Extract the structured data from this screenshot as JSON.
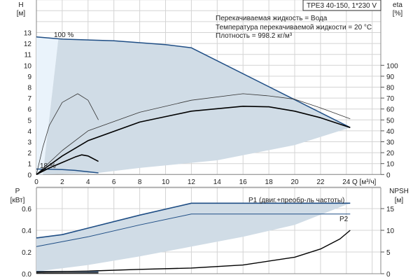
{
  "title_box": "TPE3 40-150, 1*230 V",
  "info": [
    "Перекачиваемая жидкость = Вода",
    "Температура перекачиваемой жидкости = 20 °C",
    "Плотность = 998.2 кг/м³"
  ],
  "colors": {
    "envelope": "#d0dce6",
    "envelope_light": "#eaf3fb",
    "max_curve": "#1f4e85",
    "curve": "#000000",
    "grid": "#d4d4d4"
  },
  "chart_data": [
    {
      "type": "line",
      "xlabel": "Q [м³/ч]",
      "ylabel": "H",
      "yunit": "[м]",
      "y2label": "eta",
      "y2unit": "[%]",
      "xlim": [
        0,
        26.6
      ],
      "ylim": [
        0,
        16
      ],
      "y2lim": [
        0,
        160
      ],
      "xticks": [
        "0",
        "2",
        "4",
        "6",
        "8",
        "10",
        "12",
        "14",
        "16",
        "18",
        "20",
        "22",
        "24"
      ],
      "yticks": [
        "0",
        "1",
        "2",
        "3",
        "4",
        "5",
        "6",
        "7",
        "8",
        "9",
        "10",
        "11",
        "12",
        "13"
      ],
      "y2ticks": [
        "0",
        "10",
        "20",
        "30",
        "40",
        "50",
        "60",
        "70",
        "80",
        "90",
        "100"
      ],
      "grid": true,
      "annotations": [
        "100 %",
        "18 %"
      ],
      "envelope": {
        "top": [
          [
            0,
            12.6
          ],
          [
            2,
            12.4
          ],
          [
            6,
            12.25
          ],
          [
            10,
            11.9
          ],
          [
            12,
            11.6
          ],
          [
            24.3,
            4.3
          ]
        ],
        "bottom": [
          [
            24.3,
            4.3
          ],
          [
            20,
            2.7
          ],
          [
            14,
            1.3
          ],
          [
            8,
            0.6
          ],
          [
            4.8,
            0.15
          ],
          [
            0,
            0
          ]
        ]
      },
      "series": [
        {
          "label": "100 %",
          "role": "H max speed",
          "points": [
            [
              0,
              12.6
            ],
            [
              2,
              12.4
            ],
            [
              6,
              12.25
            ],
            [
              10,
              11.9
            ],
            [
              12,
              11.6
            ],
            [
              24.3,
              4.3
            ]
          ]
        },
        {
          "label": "18 %",
          "role": "H min speed",
          "points": [
            [
              0,
              0.5
            ],
            [
              1,
              0.48
            ],
            [
              2,
              0.45
            ],
            [
              3,
              0.38
            ],
            [
              4.8,
              0.15
            ]
          ]
        },
        {
          "role": "eta max speed [%]",
          "points": [
            [
              0,
              0
            ],
            [
              2,
              22
            ],
            [
              4,
              40
            ],
            [
              8,
              57
            ],
            [
              12,
              68
            ],
            [
              16,
              74
            ],
            [
              18,
              72
            ],
            [
              20,
              69
            ],
            [
              22,
              61
            ],
            [
              24.3,
              51
            ]
          ]
        },
        {
          "role": "eta min speed [%]",
          "points": [
            [
              0,
              0
            ],
            [
              0.5,
              25
            ],
            [
              1,
              45
            ],
            [
              2,
              66
            ],
            [
              3.2,
              74
            ],
            [
              4,
              68
            ],
            [
              4.8,
              50
            ]
          ]
        },
        {
          "role": "H duty",
          "points": [
            [
              0,
              0
            ],
            [
              2,
              17
            ],
            [
              4,
              31
            ],
            [
              8,
              48
            ],
            [
              12,
              58
            ],
            [
              16,
              62.5
            ],
            [
              18,
              62
            ],
            [
              20,
              58
            ],
            [
              22,
              52
            ],
            [
              24.3,
              43
            ]
          ]
        },
        {
          "role": "H duty min",
          "points": [
            [
              0,
              0
            ],
            [
              1,
              6
            ],
            [
              2,
              11
            ],
            [
              3,
              16
            ],
            [
              3.5,
              18
            ],
            [
              4,
              17
            ],
            [
              4.8,
              12
            ]
          ]
        }
      ]
    },
    {
      "type": "line",
      "xlabel": "Q [м³/ч]",
      "ylabel": "P",
      "yunit": "[кВт]",
      "y2label": "NPSH",
      "y2unit": "[м]",
      "xlim": [
        0,
        26.6
      ],
      "ylim": [
        0,
        0.8
      ],
      "y2lim": [
        0,
        20
      ],
      "yticks": [
        "0.0",
        "0.2",
        "0.4",
        "0.6"
      ],
      "y2ticks": [
        "0",
        "5",
        "10",
        "15"
      ],
      "grid": true,
      "envelope": {
        "top": [
          [
            0,
            0.33
          ],
          [
            2,
            0.36
          ],
          [
            4,
            0.42
          ],
          [
            8,
            0.54
          ],
          [
            12,
            0.65
          ],
          [
            24.3,
            0.65
          ]
        ],
        "bottom": [
          [
            24.3,
            0.65
          ],
          [
            20,
            0.45
          ],
          [
            16,
            0.34
          ],
          [
            12,
            0.25
          ],
          [
            8,
            0.16
          ],
          [
            4,
            0.08
          ],
          [
            0,
            0.02
          ]
        ]
      },
      "series": [
        {
          "name": "P1 (двиг.+преобр-ль частоты)",
          "points": [
            [
              0,
              0.33
            ],
            [
              2,
              0.36
            ],
            [
              4,
              0.42
            ],
            [
              8,
              0.54
            ],
            [
              12,
              0.65
            ],
            [
              24.3,
              0.65
            ]
          ]
        },
        {
          "name": "P2",
          "points": [
            [
              0,
              0.25
            ],
            [
              4,
              0.34
            ],
            [
              8,
              0.45
            ],
            [
              12,
              0.55
            ],
            [
              24.3,
              0.55
            ]
          ]
        },
        {
          "role": "P1 min speed",
          "points": [
            [
              0,
              0.02
            ],
            [
              4.8,
              0.02
            ]
          ]
        },
        {
          "role": "P2 min speed",
          "points": [
            [
              0,
              0.005
            ],
            [
              4.8,
              0.008
            ]
          ]
        },
        {
          "role": "NPSH [м]",
          "points": [
            [
              0,
              0.4
            ],
            [
              4,
              0.6
            ],
            [
              8,
              1
            ],
            [
              12,
              1.3
            ],
            [
              16,
              2
            ],
            [
              20,
              3.8
            ],
            [
              22,
              5.7
            ],
            [
              23.5,
              8
            ],
            [
              24.3,
              10
            ]
          ]
        }
      ]
    }
  ]
}
